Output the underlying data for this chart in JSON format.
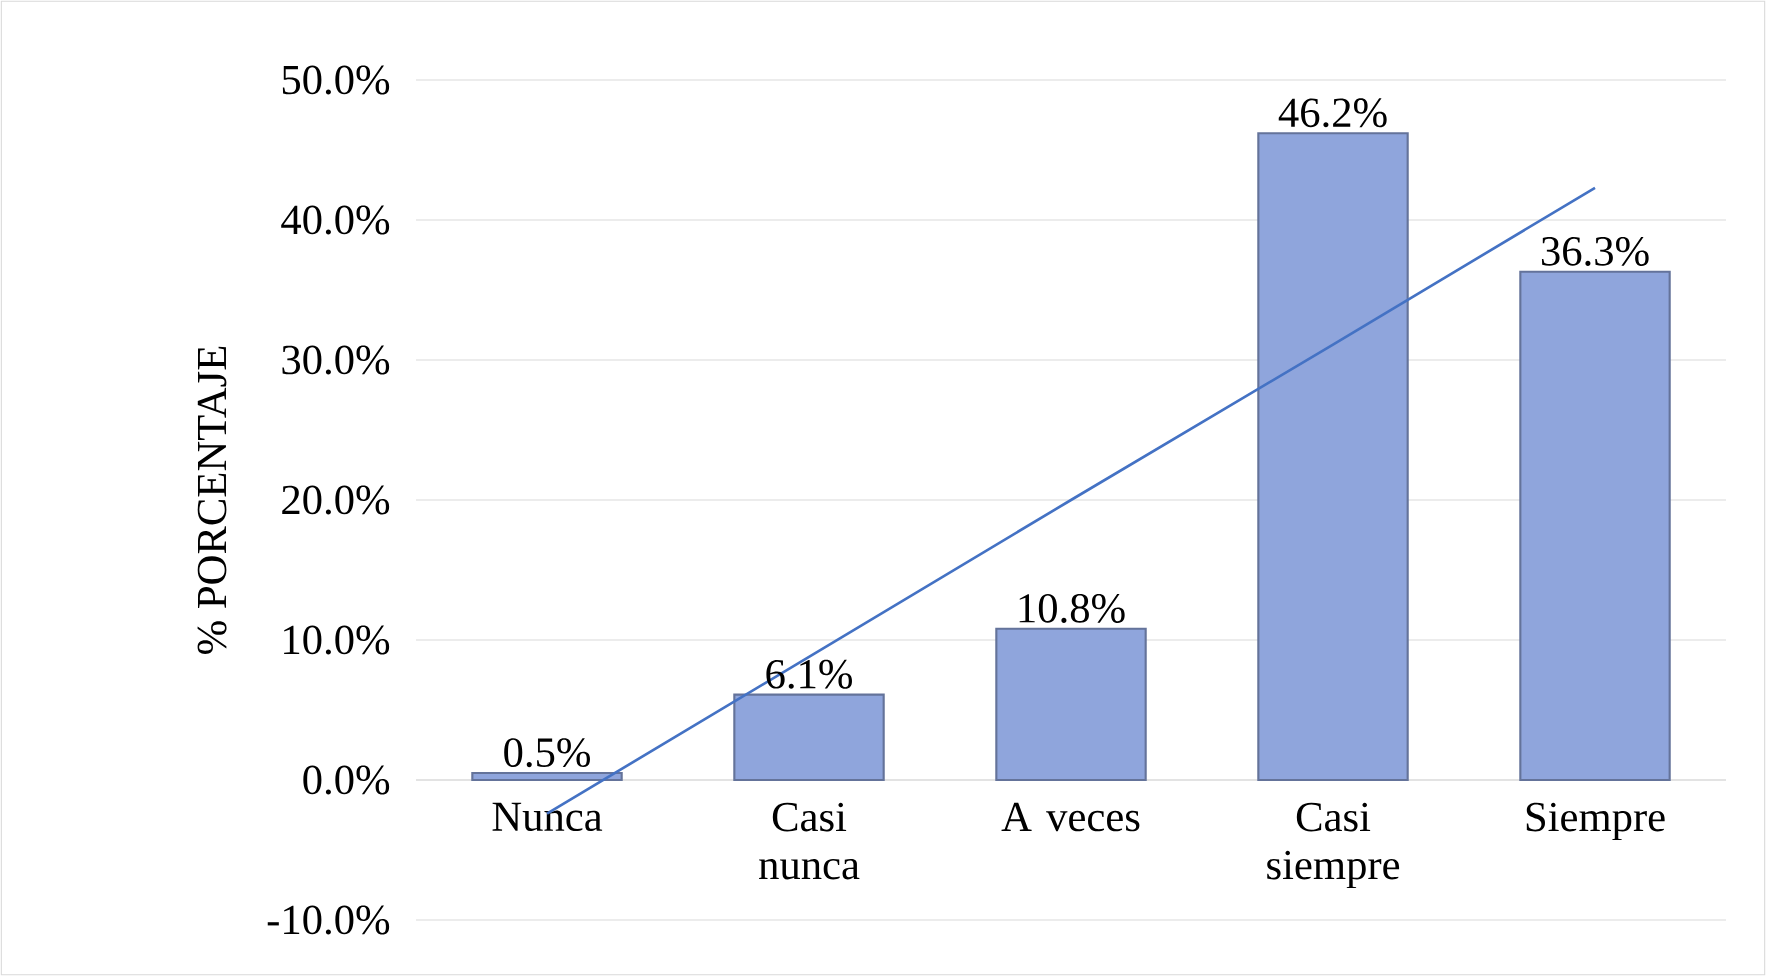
{
  "chart_data": {
    "type": "bar",
    "ylabel": "% PORCENTAJE",
    "categories": [
      "Nunca",
      "Casi nunca",
      "A veces",
      "Casi siempre",
      "Siempre"
    ],
    "ylim": [
      -10,
      50
    ],
    "yticks": [
      {
        "value": -10,
        "label": "-10.0%"
      },
      {
        "value": 0,
        "label": "0.0%"
      },
      {
        "value": 10,
        "label": "10.0%"
      },
      {
        "value": 20,
        "label": "20.0%"
      },
      {
        "value": 30,
        "label": "30.0%"
      },
      {
        "value": 40,
        "label": "40.0%"
      },
      {
        "value": 50,
        "label": "50.0%"
      }
    ],
    "grid": "y",
    "series": [
      {
        "color": "#8fa5dc",
        "values": [
          0.5,
          6.1,
          10.8,
          46.2,
          36.3
        ],
        "value_labels": [
          "0.5%",
          "6.1%",
          "10.8%",
          "46.2%",
          "36.3%"
        ]
      },
      {
        "type": "line",
        "color": "#4472c4",
        "values": [
          -2.4,
          8.8,
          20.0,
          31.1,
          42.3
        ]
      }
    ]
  }
}
